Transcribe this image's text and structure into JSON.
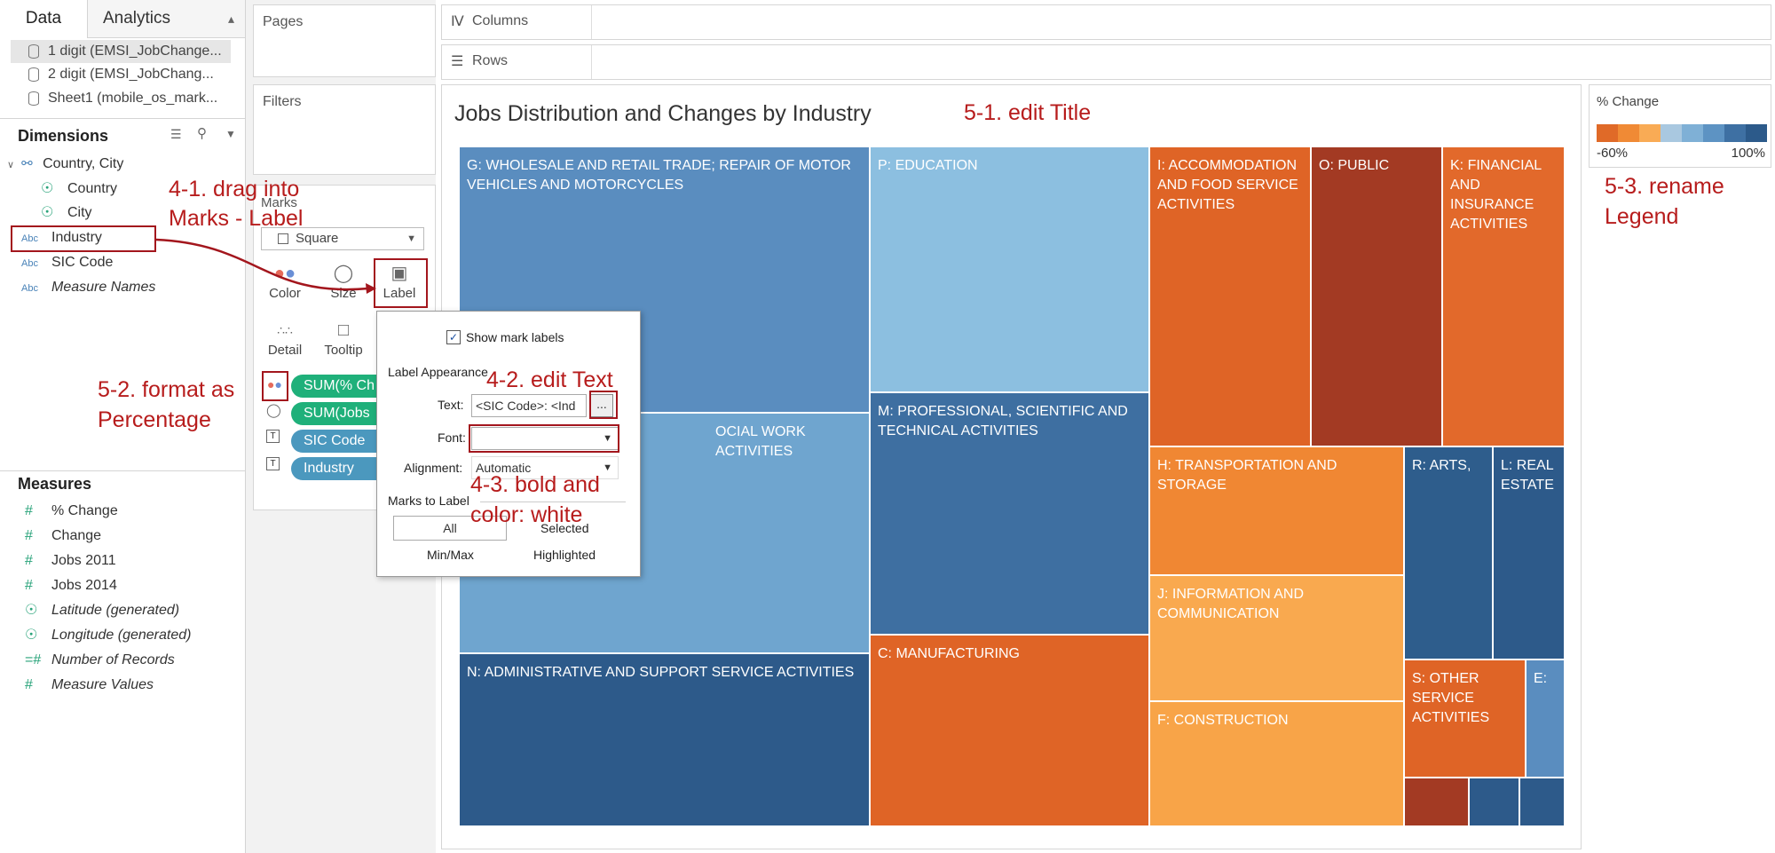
{
  "left_panel": {
    "tabs": [
      "Data",
      "Analytics"
    ],
    "data_sources": [
      "1 digit (EMSI_JobChange...",
      "2 digit (EMSI_JobChang...",
      "Sheet1 (mobile_os_mark..."
    ],
    "dimensions_header": "Dimensions",
    "dimensions": [
      {
        "label": "Country, City",
        "type": "hierarchy",
        "italic": false
      },
      {
        "label": "Country",
        "type": "geo",
        "italic": false
      },
      {
        "label": "City",
        "type": "geo",
        "italic": false
      },
      {
        "label": "Industry",
        "type": "Abc",
        "italic": false
      },
      {
        "label": "SIC Code",
        "type": "Abc",
        "italic": false
      },
      {
        "label": "Measure Names",
        "type": "Abc",
        "italic": true
      }
    ],
    "measures_header": "Measures",
    "measures": [
      {
        "label": "% Change",
        "italic": false
      },
      {
        "label": "Change",
        "italic": false
      },
      {
        "label": "Jobs 2011",
        "italic": false
      },
      {
        "label": "Jobs 2014",
        "italic": false
      },
      {
        "label": "Latitude (generated)",
        "italic": true
      },
      {
        "label": "Longitude (generated)",
        "italic": true
      },
      {
        "label": "Number of Records",
        "italic": true
      },
      {
        "label": "Measure Values",
        "italic": true
      }
    ]
  },
  "shelves": {
    "pages": "Pages",
    "filters": "Filters",
    "marks": "Marks",
    "mark_type": "Square",
    "columns": "Columns",
    "rows": "Rows",
    "mark_buttons": [
      "Color",
      "Size",
      "Label",
      "Detail",
      "Tooltip"
    ],
    "pills": [
      "SUM(% Ch",
      "SUM(Jobs",
      "SIC Code",
      "Industry"
    ]
  },
  "viz": {
    "title": "Jobs Distribution and Changes by Industry",
    "tiles": [
      {
        "label": "G: WHOLESALE AND RETAIL TRADE; REPAIR OF MOTOR VEHICLES AND MOTORCYCLES",
        "color": "#5a8dbf"
      },
      {
        "label": "OCIAL WORK ACTIVITIES",
        "color": "#6fa5cf"
      },
      {
        "label": "N: ADMINISTRATIVE AND SUPPORT SERVICE ACTIVITIES",
        "color": "#2d5a8a"
      },
      {
        "label": "P: EDUCATION",
        "color": "#8cbfe0"
      },
      {
        "label": "M: PROFESSIONAL, SCIENTIFIC AND TECHNICAL ACTIVITIES",
        "color": "#3e6fa1"
      },
      {
        "label": "C: MANUFACTURING",
        "color": "#df6426"
      },
      {
        "label": "I: ACCOMMODATION AND FOOD SERVICE ACTIVITIES",
        "color": "#df6426"
      },
      {
        "label": "O: PUBLIC",
        "color": "#a33a23"
      },
      {
        "label": "K: FINANCIAL AND INSURANCE ACTIVITIES",
        "color": "#e2692b"
      },
      {
        "label": "H: TRANSPORTATION AND STORAGE",
        "color": "#f08733"
      },
      {
        "label": "J: INFORMATION AND COMMUNICATION",
        "color": "#f9a94f"
      },
      {
        "label": "F: CONSTRUCTION",
        "color": "#f8a448"
      },
      {
        "label": "R: ARTS,",
        "color": "#2e5d8c"
      },
      {
        "label": "L: REAL ESTATE",
        "color": "#2d5a8a"
      },
      {
        "label": "S: OTHER SERVICE ACTIVITIES",
        "color": "#df6426"
      },
      {
        "label": "E:",
        "color": "#5a8dbf"
      },
      {
        "label": "",
        "color": "#a33a23"
      },
      {
        "label": "",
        "color": "#2d5a8a"
      },
      {
        "label": "",
        "color": "#2d5a8a"
      }
    ]
  },
  "legend": {
    "title": "% Change",
    "min_label": "-60%",
    "max_label": "100%",
    "colors": [
      "#e06a28",
      "#f08a35",
      "#f9ab55",
      "#a9c8e0",
      "#7fb0d6",
      "#5d93c3",
      "#3e70a3",
      "#2c5a8a"
    ]
  },
  "label_popup": {
    "show_mark_labels": "Show mark labels",
    "label_appearance": "Label Appearance",
    "text_label": "Text:",
    "text_value": "<SIC Code>: <Ind",
    "more_button": "...",
    "font_label": "Font:",
    "alignment_label": "Alignment:",
    "alignment_value": "Automatic",
    "marks_to_label": "Marks to Label",
    "options": [
      "All",
      "Selected",
      "Min/Max",
      "Highlighted"
    ]
  },
  "annotations": {
    "a41_line1": "4-1. drag into",
    "a41_line2": "Marks - Label",
    "a42": "4-2. edit Text",
    "a43_line1": "4-3. bold and",
    "a43_line2": "color: white",
    "a51": "5-1. edit Title",
    "a52_line1": "5-2. format as",
    "a52_line2": "Percentage",
    "a53_line1": "5-3. rename",
    "a53_line2": "Legend"
  }
}
